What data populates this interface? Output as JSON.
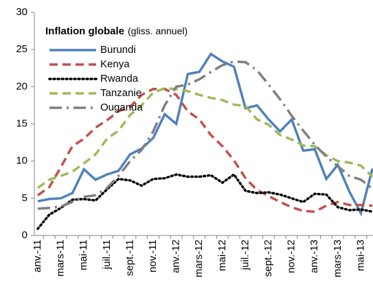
{
  "chart_data": {
    "type": "line",
    "title": "Inflation globale",
    "subtitle": "(gliss. annuel)",
    "categories": [
      "anv.-11",
      null,
      "mars-11",
      null,
      "mai-11",
      null,
      "juil.-11",
      null,
      "sept.-11",
      null,
      "nov.-11",
      null,
      "anv.-12",
      null,
      "mars-12",
      null,
      "mai-12",
      null,
      "juil.-12",
      null,
      "sept.-12",
      null,
      "nov.-12",
      null,
      "anv.-13",
      null,
      "mars-13",
      null,
      "mai-13",
      null
    ],
    "series": [
      {
        "name": "Burundi",
        "color": "#4f81bd",
        "style": "solid",
        "values": [
          4.6,
          4.9,
          5.0,
          5.7,
          8.9,
          7.5,
          8.2,
          8.7,
          10.9,
          11.7,
          13.1,
          16.3,
          15.0,
          21.7,
          22.0,
          24.4,
          23.4,
          22.7,
          17.1,
          17.5,
          15.6,
          14.0,
          15.6,
          11.4,
          11.6,
          7.6,
          9.5,
          5.9,
          3.0,
          9.0
        ]
      },
      {
        "name": "Kenya",
        "color": "#c0504d",
        "style": "dash",
        "values": [
          5.4,
          6.5,
          9.2,
          12.0,
          13.0,
          14.5,
          15.5,
          16.7,
          17.3,
          18.9,
          19.7,
          19.7,
          18.9,
          16.7,
          15.6,
          13.5,
          12.0,
          10.1,
          7.7,
          6.1,
          5.3,
          4.5,
          3.8,
          3.3,
          3.2,
          4.0,
          4.5,
          4.1,
          4.1,
          4.0
        ]
      },
      {
        "name": "Rwanda",
        "color": "#000000",
        "style": "dot",
        "values": [
          0.9,
          2.8,
          3.7,
          4.8,
          4.9,
          4.7,
          6.2,
          7.6,
          7.4,
          6.7,
          7.6,
          7.7,
          8.2,
          7.9,
          7.9,
          8.1,
          7.1,
          8.2,
          6.0,
          5.7,
          5.8,
          5.5,
          5.0,
          4.5,
          5.6,
          5.5,
          3.8,
          3.4,
          3.5,
          3.2
        ]
      },
      {
        "name": "Tanzanie",
        "color": "#9bbb59",
        "style": "dash",
        "values": [
          6.4,
          7.5,
          8.0,
          8.6,
          9.7,
          10.9,
          13.0,
          14.1,
          16.2,
          17.5,
          19.2,
          19.8,
          19.7,
          19.4,
          18.9,
          18.5,
          18.2,
          17.6,
          17.4,
          15.6,
          14.9,
          13.5,
          12.9,
          12.1,
          12.0,
          10.8,
          10.0,
          9.8,
          9.4,
          7.9
        ]
      },
      {
        "name": "Ouganda",
        "color": "#7f7f7f",
        "style": "dashdot",
        "values": [
          3.6,
          3.7,
          3.9,
          4.5,
          5.2,
          5.4,
          6.4,
          8.0,
          10.0,
          11.5,
          14.0,
          17.5,
          20.0,
          20.3,
          21.0,
          22.0,
          22.9,
          23.4,
          23.3,
          22.2,
          20.3,
          18.3,
          16.1,
          14.1,
          12.2,
          10.6,
          9.3,
          8.0,
          7.5,
          6.3
        ]
      }
    ],
    "ylim": [
      0,
      30
    ],
    "yticks": [
      0,
      5,
      10,
      15,
      20,
      25,
      30
    ],
    "grid": false,
    "legend": "top-left"
  }
}
